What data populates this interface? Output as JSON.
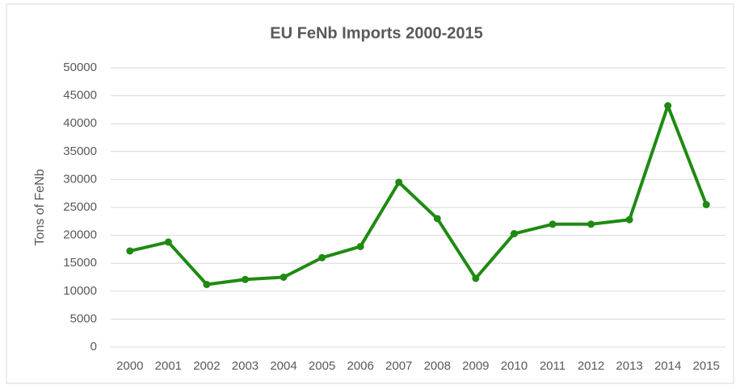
{
  "chart_data": {
    "type": "line",
    "title": "EU FeNb Imports 2000-2015",
    "ylabel": "Tons of FeNb",
    "categories": [
      "2000",
      "2001",
      "2002",
      "2003",
      "2004",
      "2005",
      "2006",
      "2007",
      "2008",
      "2009",
      "2010",
      "2011",
      "2012",
      "2013",
      "2014",
      "2015"
    ],
    "series": [
      {
        "name": "EU FeNb Imports",
        "color": "#1f8a12",
        "values": [
          17200,
          18800,
          11200,
          12100,
          12500,
          16000,
          18000,
          29500,
          23000,
          12300,
          20300,
          22000,
          22000,
          22800,
          43200,
          25500
        ]
      }
    ],
    "ylim": [
      0,
      50000
    ],
    "yticks": [
      0,
      5000,
      10000,
      15000,
      20000,
      25000,
      30000,
      35000,
      40000,
      45000,
      50000
    ],
    "grid": true
  }
}
